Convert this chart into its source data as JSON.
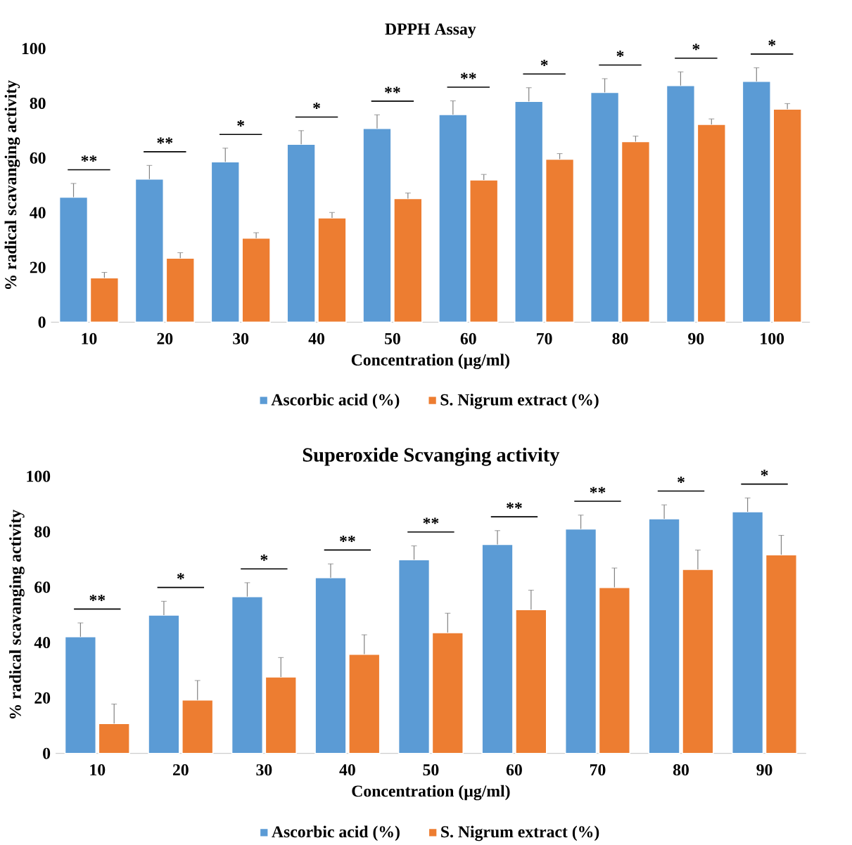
{
  "chart_data": [
    {
      "type": "bar",
      "title": "DPPH Assay",
      "xlabel": "Concentration (µg/ml)",
      "ylabel": "% radical scavanging activity",
      "categories": [
        "10",
        "20",
        "30",
        "40",
        "50",
        "60",
        "70",
        "80",
        "90",
        "100"
      ],
      "series": [
        {
          "name": "Ascorbic acid (%)",
          "color": "#5b9bd5",
          "values": [
            45.7,
            52.3,
            58.6,
            65,
            70.8,
            75.9,
            80.7,
            84,
            86.5,
            88
          ],
          "errors": [
            5,
            5,
            5,
            5,
            5,
            5,
            5,
            5,
            5,
            5
          ]
        },
        {
          "name": "S. Nigrum extract (%)",
          "color": "#ed7d31",
          "values": [
            16.2,
            23.4,
            30.7,
            38.1,
            45.2,
            52,
            59.6,
            66,
            72.3,
            77.9
          ],
          "errors": [
            2,
            2,
            2,
            2,
            2,
            2,
            2,
            2,
            2,
            2
          ]
        }
      ],
      "ylim": [
        0,
        100
      ],
      "yticks": [
        0,
        20,
        40,
        60,
        80,
        100
      ],
      "grid": false,
      "legend": "bottom",
      "annotations": [
        "**",
        "**",
        "*",
        "*",
        "**",
        "**",
        "*",
        "*",
        "*",
        "*"
      ]
    },
    {
      "type": "bar",
      "title": "Superoxide Scvanging activity",
      "xlabel": "Concentration (µg/ml)",
      "ylabel": "% radical scavanging activity",
      "categories": [
        "10",
        "20",
        "30",
        "40",
        "50",
        "60",
        "70",
        "80",
        "90"
      ],
      "series": [
        {
          "name": "Ascorbic acid (%)",
          "color": "#5b9bd5",
          "values": [
            42.1,
            49.9,
            56.6,
            63.4,
            69.9,
            75.4,
            81,
            84.7,
            87.2
          ],
          "errors": [
            5,
            5,
            5,
            5,
            5,
            5,
            5,
            5,
            5
          ]
        },
        {
          "name": "S. Nigrum extract (%)",
          "color": "#ed7d31",
          "values": [
            10.8,
            19.3,
            27.6,
            35.8,
            43.6,
            51.9,
            59.9,
            66.4,
            71.7
          ],
          "errors": [
            7,
            7,
            7,
            7,
            7,
            7,
            7,
            7,
            7
          ]
        }
      ],
      "ylim": [
        0,
        100
      ],
      "yticks": [
        0,
        20,
        40,
        60,
        80,
        100
      ],
      "grid": false,
      "legend": "bottom",
      "annotations": [
        "**",
        "*",
        "*",
        "**",
        "**",
        "**",
        "**",
        "*",
        "*"
      ]
    }
  ]
}
